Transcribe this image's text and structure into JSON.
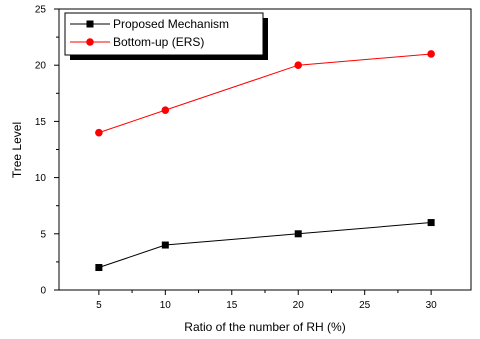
{
  "chart_data": {
    "type": "line",
    "xlabel": "Ratio of the number of RH (%)",
    "ylabel": "Tree Level",
    "xlim": [
      2,
      33
    ],
    "ylim": [
      0,
      25
    ],
    "xticks": [
      5,
      10,
      15,
      20,
      25,
      30
    ],
    "yticks": [
      0,
      5,
      10,
      15,
      20,
      25
    ],
    "grid": false,
    "legend_position": "top-left",
    "series": [
      {
        "name": "Proposed Mechanism",
        "x": [
          5,
          10,
          20,
          30
        ],
        "y": [
          2,
          4,
          5,
          6
        ],
        "color": "#000000",
        "marker": "square"
      },
      {
        "name": "Bottom-up (ERS)",
        "x": [
          5,
          10,
          20,
          30
        ],
        "y": [
          14,
          16,
          20,
          21
        ],
        "color": "#ff0000",
        "marker": "circle"
      }
    ]
  }
}
